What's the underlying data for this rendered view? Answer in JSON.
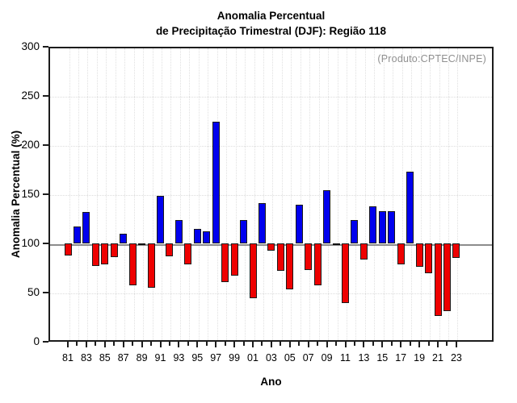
{
  "title": {
    "line1": "Anomalia Percentual",
    "line2": "de Precipitação Trimestral (DJF): Região 118"
  },
  "credit": "(Produto:CPTEC/INPE)",
  "chart_data": {
    "type": "bar",
    "title": "Anomalia Percentual de Precipitação Trimestral (DJF): Região 118",
    "xlabel": "Ano",
    "ylabel": "Anomalia Percentual (%)",
    "ylim": [
      0,
      300
    ],
    "yticks": [
      0,
      50,
      100,
      150,
      200,
      250,
      300
    ],
    "baseline": 100,
    "grid": "dotted, vertical line per year, horizontal every 50",
    "legend": "none; blue = above 100%, red = below 100%",
    "x_tick_labels": [
      "81",
      "83",
      "85",
      "87",
      "89",
      "91",
      "93",
      "95",
      "97",
      "99",
      "01",
      "03",
      "05",
      "07",
      "09",
      "11",
      "13",
      "15",
      "17",
      "19",
      "21",
      "23"
    ],
    "categories": [
      1981,
      1982,
      1983,
      1984,
      1985,
      1986,
      1987,
      1988,
      1989,
      1990,
      1991,
      1992,
      1993,
      1994,
      1995,
      1996,
      1997,
      1998,
      1999,
      2000,
      2001,
      2002,
      2003,
      2004,
      2005,
      2006,
      2007,
      2008,
      2009,
      2010,
      2011,
      2012,
      2013,
      2014,
      2015,
      2016,
      2017,
      2018,
      2019,
      2020,
      2021,
      2022,
      2023
    ],
    "values": [
      88,
      117,
      132,
      77,
      79,
      86,
      110,
      57,
      100,
      55,
      148,
      87,
      124,
      79,
      115,
      112,
      224,
      61,
      67,
      124,
      44,
      141,
      93,
      72,
      53,
      139,
      73,
      57,
      154,
      100,
      39,
      124,
      84,
      138,
      133,
      133,
      79,
      173,
      76,
      70,
      26,
      31,
      85
    ],
    "colors": {
      "above_baseline": "#0000ee",
      "below_baseline": "#ee0000",
      "flat_baseline_bar": "#111111",
      "baseline_line": "#8c8c8c",
      "grid": "#dfdfdf",
      "credit_text": "#909090"
    }
  }
}
